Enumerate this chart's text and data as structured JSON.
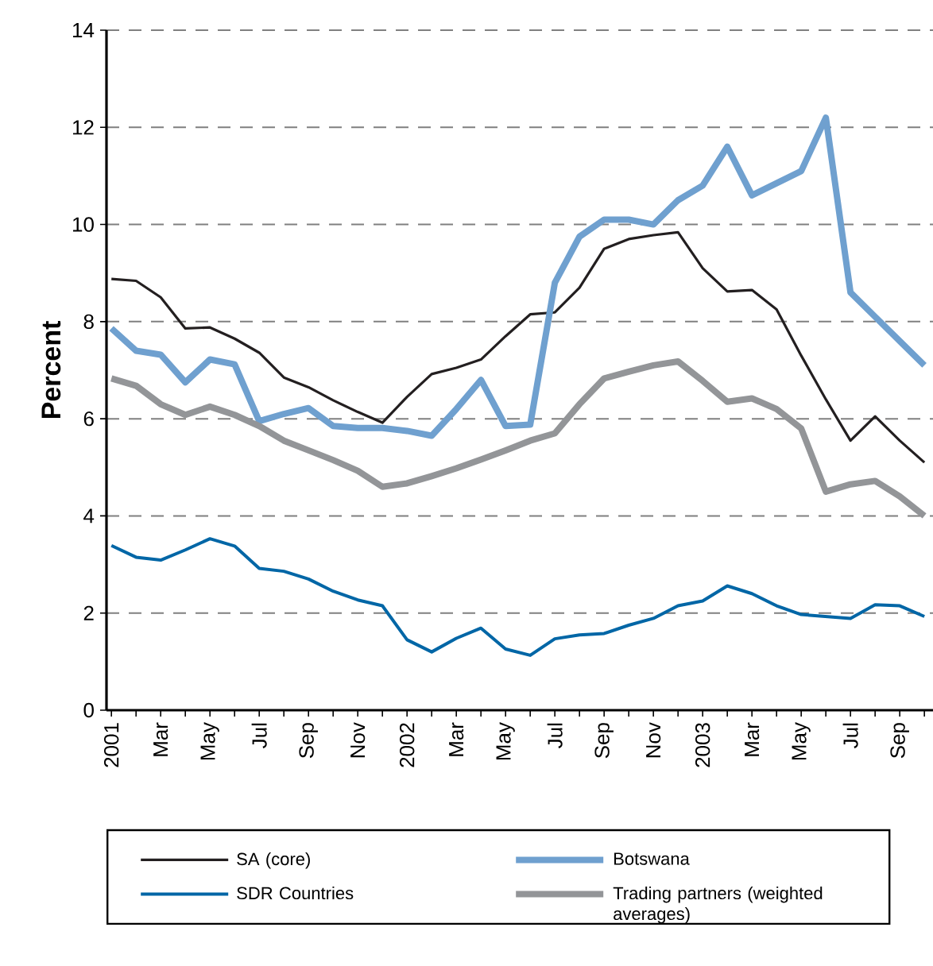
{
  "chart_data": {
    "type": "line",
    "ylabel": "Percent",
    "categories": [
      "2001",
      null,
      "Mar",
      null,
      "May",
      null,
      "Jul",
      null,
      "Sep",
      null,
      "Nov",
      null,
      "2002",
      null,
      "Mar",
      null,
      "May",
      null,
      "Jul",
      null,
      "Sep",
      null,
      "Nov",
      null,
      "2003",
      null,
      "Mar",
      null,
      "May",
      null,
      "Jul",
      null,
      "Sep",
      null
    ],
    "series": [
      {
        "name": "SA (core)",
        "color": "#231f20",
        "values": [
          8.88,
          8.84,
          8.5,
          7.86,
          7.88,
          7.65,
          7.36,
          6.85,
          6.65,
          6.38,
          6.14,
          5.92,
          6.45,
          6.92,
          7.05,
          7.22,
          7.7,
          8.15,
          8.19,
          8.7,
          9.5,
          9.7,
          9.78,
          9.84,
          9.1,
          8.62,
          8.65,
          8.25,
          7.3,
          6.4,
          5.55,
          6.05,
          5.55,
          5.1
        ]
      },
      {
        "name": "Botswana",
        "color": "#6fa0cf",
        "values": [
          7.86,
          7.4,
          7.32,
          6.75,
          7.22,
          7.12,
          5.95,
          6.1,
          6.22,
          5.85,
          5.81,
          5.81,
          5.75,
          5.65,
          6.2,
          6.8,
          5.85,
          5.88,
          8.8,
          9.75,
          10.1,
          10.1,
          10.0,
          10.5,
          10.8,
          11.6,
          10.6,
          10.85,
          11.1,
          12.2,
          8.6,
          8.1,
          7.6,
          7.1
        ]
      },
      {
        "name": "SDR Countries",
        "color": "#0066a6",
        "values": [
          3.39,
          3.15,
          3.09,
          3.3,
          3.53,
          3.38,
          2.92,
          2.86,
          2.7,
          2.45,
          2.27,
          2.15,
          1.45,
          1.2,
          1.48,
          1.69,
          1.26,
          1.13,
          1.47,
          1.55,
          1.58,
          1.75,
          1.89,
          2.15,
          2.25,
          2.56,
          2.4,
          2.15,
          1.97,
          1.93,
          1.89,
          2.17,
          2.15,
          1.93
        ]
      },
      {
        "name": "Trading partners (weighted averages)",
        "color": "#939598",
        "values": [
          6.83,
          6.68,
          6.3,
          6.08,
          6.25,
          6.08,
          5.85,
          5.55,
          5.35,
          5.15,
          4.93,
          4.6,
          4.67,
          4.82,
          4.98,
          5.16,
          5.35,
          5.55,
          5.7,
          6.3,
          6.83,
          6.97,
          7.1,
          7.18,
          6.78,
          6.35,
          6.42,
          6.2,
          5.8,
          4.5,
          4.65,
          4.72,
          4.4,
          4.0
        ]
      }
    ],
    "ylim": [
      0,
      14
    ],
    "yticks": [
      0,
      2,
      4,
      6,
      8,
      10,
      12,
      14
    ],
    "grid": "y",
    "legend": "bottom"
  }
}
